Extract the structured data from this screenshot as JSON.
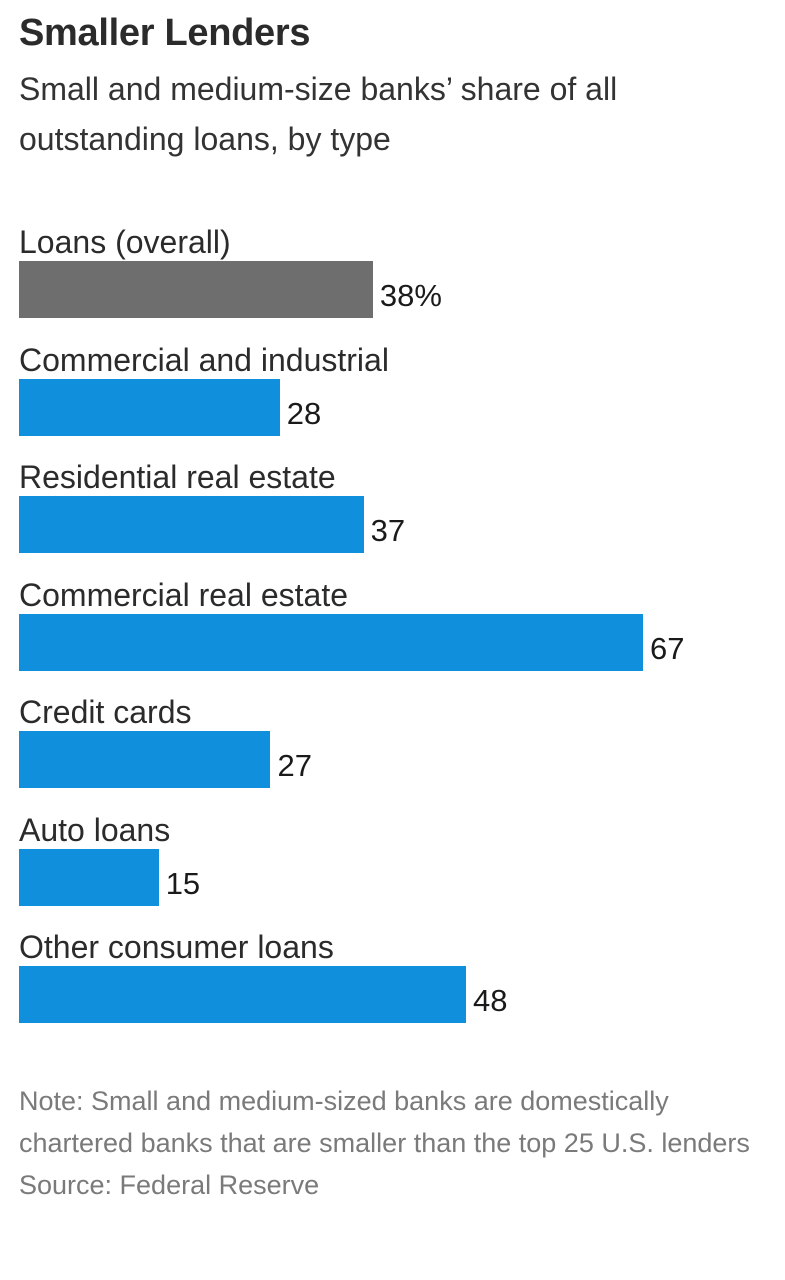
{
  "header": {
    "title": "Smaller Lenders",
    "subtitle": "Small and medium-size banks’ share of all outstanding loans, by type"
  },
  "chart_data": {
    "type": "bar",
    "orientation": "horizontal",
    "categories": [
      "Loans (overall)",
      "Commercial and industrial",
      "Residential real estate",
      "Commercial real estate",
      "Credit cards",
      "Auto loans",
      "Other consumer loans"
    ],
    "values": [
      38,
      28,
      37,
      67,
      27,
      15,
      48
    ],
    "value_labels": [
      "38%",
      "28",
      "37",
      "67",
      "27",
      "15",
      "48"
    ],
    "colors": [
      "#6e6e6e",
      "#0f8fdc",
      "#0f8fdc",
      "#0f8fdc",
      "#0f8fdc",
      "#0f8fdc",
      "#0f8fdc"
    ],
    "xlim": [
      0,
      67
    ],
    "grid": false,
    "legend": "none"
  },
  "footer": {
    "note": "Note: Small and medium-sized banks are domestically chartered banks that are smaller than the top 25 U.S. lenders",
    "source": "Source: Federal Reserve"
  }
}
